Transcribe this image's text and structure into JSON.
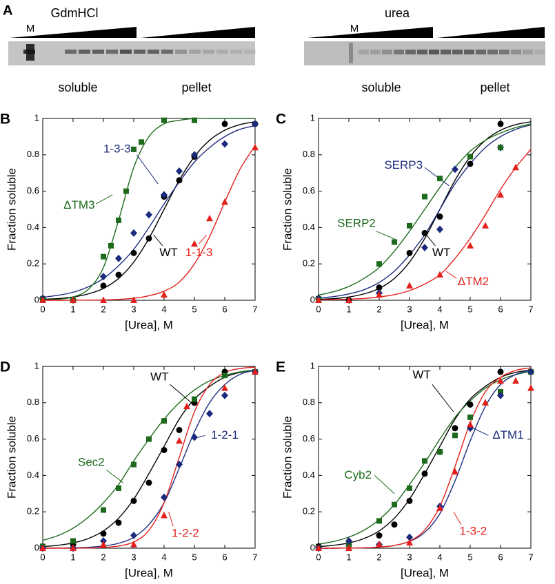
{
  "panel_a": {
    "label": "A",
    "gels": [
      {
        "title": "GdmHCl",
        "marker": "M",
        "left": "soluble",
        "right": "pellet"
      },
      {
        "title": "urea",
        "marker": "M",
        "left": "soluble",
        "right": "pellet"
      }
    ]
  },
  "chart_data": [
    {
      "type": "scatter",
      "panel": "B",
      "xlabel": "[Urea], M",
      "ylabel": "Fraction soluble",
      "xlim": [
        0,
        7
      ],
      "ylim": [
        0,
        1
      ],
      "xticks": [
        0,
        1,
        2,
        3,
        4,
        5,
        6,
        7
      ],
      "yticks": [
        0,
        0.2,
        0.4,
        0.6,
        0.8,
        1
      ],
      "fit_x": [
        0,
        0.5,
        1,
        1.5,
        2,
        2.5,
        3,
        3.5,
        4,
        4.5,
        5,
        5.5,
        6,
        6.5,
        7
      ],
      "series": [
        {
          "name": "WT",
          "color": "#000000",
          "marker": "circle",
          "x": [
            0,
            1,
            2,
            2.5,
            3,
            3.5,
            4,
            4.5,
            5,
            6,
            7
          ],
          "values": [
            0.01,
            0,
            0.08,
            0.14,
            0.26,
            0.34,
            0.57,
            0.66,
            0.79,
            0.97,
            0.97
          ],
          "fit": [
            0.005,
            0.009,
            0.018,
            0.035,
            0.065,
            0.12,
            0.21,
            0.34,
            0.5,
            0.66,
            0.79,
            0.88,
            0.935,
            0.966,
            0.982
          ]
        },
        {
          "name": "1-3-3",
          "color": "#1c2a7e",
          "marker": "diamond",
          "x": [
            0,
            2,
            2.5,
            3,
            3.5,
            4,
            4.5,
            5,
            6,
            7
          ],
          "values": [
            0.01,
            0.13,
            0.23,
            0.37,
            0.47,
            0.58,
            0.71,
            0.8,
            0.86,
            0.97
          ],
          "fit": [
            0.016,
            0.027,
            0.044,
            0.074,
            0.12,
            0.19,
            0.28,
            0.4,
            0.53,
            0.65,
            0.76,
            0.84,
            0.9,
            0.94,
            0.96
          ]
        },
        {
          "name": "ΔTM3",
          "color": "#1d6a1d",
          "marker": "square",
          "x": [
            0,
            1,
            2,
            2.25,
            2.5,
            2.75,
            3,
            3.25,
            4,
            5
          ],
          "values": [
            0,
            0,
            0.24,
            0.3,
            0.44,
            0.6,
            0.83,
            0.87,
            0.99,
            0.99
          ],
          "fit": [
            0.001,
            0.005,
            0.018,
            0.06,
            0.18,
            0.44,
            0.73,
            0.9,
            0.97,
            0.99,
            1,
            1,
            1,
            1,
            1
          ]
        },
        {
          "name": "1-1-3",
          "color": "#e3201b",
          "marker": "triangle",
          "x": [
            0,
            1,
            2,
            3,
            4,
            5,
            5.5,
            6,
            7
          ],
          "values": [
            0,
            0,
            0,
            0,
            0.03,
            0.31,
            0.45,
            0.54,
            0.84
          ],
          "fit": [
            0,
            0,
            0,
            0.001,
            0.002,
            0.005,
            0.011,
            0.025,
            0.05,
            0.1,
            0.2,
            0.35,
            0.54,
            0.72,
            0.85
          ]
        }
      ]
    },
    {
      "type": "scatter",
      "panel": "C",
      "xlabel": "[Urea], M",
      "ylabel": "Fraction soluble",
      "xlim": [
        0,
        7
      ],
      "ylim": [
        0,
        1
      ],
      "xticks": [
        0,
        1,
        2,
        3,
        4,
        5,
        6,
        7
      ],
      "yticks": [
        0,
        0.2,
        0.4,
        0.6,
        0.8,
        1
      ],
      "fit_x": [
        0,
        0.5,
        1,
        1.5,
        2,
        2.5,
        3,
        3.5,
        4,
        4.5,
        5,
        5.5,
        6,
        6.5,
        7
      ],
      "series": [
        {
          "name": "WT",
          "color": "#000000",
          "marker": "circle",
          "x": [
            0,
            1,
            2,
            3,
            3.5,
            4,
            5,
            6
          ],
          "values": [
            0.01,
            0,
            0.07,
            0.26,
            0.37,
            0.46,
            0.75,
            0.97
          ],
          "fit": [
            0.005,
            0.009,
            0.018,
            0.035,
            0.065,
            0.12,
            0.21,
            0.34,
            0.5,
            0.66,
            0.79,
            0.88,
            0.935,
            0.966,
            0.982
          ]
        },
        {
          "name": "SERP3",
          "color": "#1c2a7e",
          "marker": "diamond",
          "x": [
            0,
            2,
            3.5,
            4,
            4.5,
            6
          ],
          "values": [
            0.01,
            0.04,
            0.29,
            0.39,
            0.72,
            0.84
          ],
          "fit": [
            0.012,
            0.02,
            0.035,
            0.058,
            0.098,
            0.16,
            0.25,
            0.36,
            0.5,
            0.64,
            0.75,
            0.84,
            0.9,
            0.94,
            0.965
          ]
        },
        {
          "name": "SERP2",
          "color": "#1d6a1d",
          "marker": "square",
          "x": [
            0,
            2,
            2.5,
            3,
            3.5,
            4,
            5,
            6
          ],
          "values": [
            0,
            0.2,
            0.32,
            0.41,
            0.57,
            0.67,
            0.79,
            0.84
          ],
          "fit": [
            0.029,
            0.047,
            0.076,
            0.12,
            0.18,
            0.27,
            0.38,
            0.5,
            0.62,
            0.73,
            0.82,
            0.88,
            0.92,
            0.95,
            0.97
          ]
        },
        {
          "name": "ΔTM2",
          "color": "#e3201b",
          "marker": "triangle",
          "x": [
            0,
            1,
            2,
            3,
            4,
            5,
            5.5,
            6,
            6.5
          ],
          "values": [
            0,
            0,
            0.03,
            0.08,
            0.14,
            0.3,
            0.41,
            0.58,
            0.73
          ],
          "fit": [
            0.002,
            0.003,
            0.006,
            0.01,
            0.018,
            0.031,
            0.053,
            0.089,
            0.14,
            0.23,
            0.34,
            0.47,
            0.61,
            0.73,
            0.83
          ]
        }
      ]
    },
    {
      "type": "scatter",
      "panel": "D",
      "xlabel": "[Urea], M",
      "ylabel": "Fraction soluble",
      "xlim": [
        0,
        7
      ],
      "ylim": [
        0,
        1
      ],
      "xticks": [
        0,
        1,
        2,
        3,
        4,
        5,
        6,
        7
      ],
      "yticks": [
        0,
        0.2,
        0.4,
        0.6,
        0.8,
        1
      ],
      "fit_x": [
        0,
        0.5,
        1,
        1.5,
        2,
        2.5,
        3,
        3.5,
        4,
        4.5,
        5,
        5.5,
        6,
        6.5,
        7
      ],
      "series": [
        {
          "name": "WT",
          "color": "#000000",
          "marker": "circle",
          "x": [
            0,
            1,
            2,
            2.5,
            3,
            3.5,
            4,
            4.5,
            5,
            6,
            7
          ],
          "values": [
            0.01,
            0.02,
            0.08,
            0.14,
            0.26,
            0.36,
            0.54,
            0.65,
            0.8,
            0.97,
            0.97
          ],
          "fit": [
            0.009,
            0.016,
            0.029,
            0.053,
            0.095,
            0.165,
            0.27,
            0.41,
            0.56,
            0.71,
            0.82,
            0.89,
            0.94,
            0.967,
            0.98
          ]
        },
        {
          "name": "Sec2",
          "color": "#1d6a1d",
          "marker": "square",
          "x": [
            0,
            1,
            2,
            2.5,
            3,
            3.5,
            4,
            5,
            6,
            7
          ],
          "values": [
            0.01,
            0.04,
            0.21,
            0.33,
            0.46,
            0.6,
            0.7,
            0.82,
            0.95,
            0.97
          ],
          "fit": [
            0.043,
            0.069,
            0.11,
            0.17,
            0.25,
            0.35,
            0.48,
            0.6,
            0.71,
            0.8,
            0.87,
            0.92,
            0.95,
            0.97,
            0.98
          ]
        },
        {
          "name": "1-2-1",
          "color": "#1c2a7e",
          "marker": "diamond",
          "x": [
            0,
            1,
            2,
            3,
            4,
            4.5,
            5,
            5.5,
            6,
            7
          ],
          "values": [
            0,
            0,
            0.04,
            0.07,
            0.28,
            0.46,
            0.61,
            0.74,
            0.84,
            0.97
          ],
          "fit": [
            0,
            0.001,
            0.002,
            0.005,
            0.012,
            0.027,
            0.06,
            0.13,
            0.25,
            0.44,
            0.64,
            0.8,
            0.9,
            0.956,
            0.98
          ]
        },
        {
          "name": "1-2-2",
          "color": "#e3201b",
          "marker": "triangle",
          "x": [
            0,
            1,
            2,
            3,
            4,
            4.5,
            4.75,
            6,
            7
          ],
          "values": [
            0,
            0,
            0.02,
            0.02,
            0.18,
            0.59,
            0.78,
            0.88,
            0.97
          ],
          "fit": [
            0,
            0,
            0,
            0.001,
            0.004,
            0.012,
            0.034,
            0.098,
            0.25,
            0.5,
            0.75,
            0.9,
            0.966,
            0.988,
            0.996
          ]
        }
      ]
    },
    {
      "type": "scatter",
      "panel": "E",
      "xlabel": "[Urea], M",
      "ylabel": "Fraction soluble",
      "xlim": [
        0,
        7
      ],
      "ylim": [
        0,
        1
      ],
      "xticks": [
        0,
        1,
        2,
        3,
        4,
        5,
        6,
        7
      ],
      "yticks": [
        0,
        0.2,
        0.4,
        0.6,
        0.8,
        1
      ],
      "fit_x": [
        0,
        0.5,
        1,
        1.5,
        2,
        2.5,
        3,
        3.5,
        4,
        4.5,
        5,
        5.5,
        6,
        6.5,
        7
      ],
      "series": [
        {
          "name": "WT",
          "color": "#000000",
          "marker": "circle",
          "x": [
            0,
            1,
            2,
            2.5,
            3,
            3.5,
            4,
            4.5,
            5,
            6,
            7
          ],
          "values": [
            0.01,
            0.02,
            0.07,
            0.13,
            0.26,
            0.41,
            0.53,
            0.66,
            0.79,
            0.97,
            0.97
          ],
          "fit": [
            0.009,
            0.016,
            0.029,
            0.053,
            0.095,
            0.165,
            0.27,
            0.41,
            0.56,
            0.71,
            0.82,
            0.89,
            0.94,
            0.967,
            0.98
          ]
        },
        {
          "name": "Cyb2",
          "color": "#1d6a1d",
          "marker": "square",
          "x": [
            0,
            1,
            2,
            2.5,
            3,
            3.5,
            4,
            4.5,
            5,
            6,
            7
          ],
          "values": [
            0,
            0.02,
            0.15,
            0.24,
            0.33,
            0.48,
            0.53,
            0.62,
            0.72,
            0.86,
            0.97
          ],
          "fit": [
            0.022,
            0.037,
            0.061,
            0.099,
            0.157,
            0.24,
            0.35,
            0.47,
            0.6,
            0.72,
            0.81,
            0.88,
            0.926,
            0.955,
            0.973
          ]
        },
        {
          "name": "ΔTM1",
          "color": "#1c2a7e",
          "marker": "diamond",
          "x": [
            0,
            1,
            2,
            3,
            4,
            5,
            6,
            7
          ],
          "values": [
            0,
            0.04,
            0.02,
            0.06,
            0.23,
            0.66,
            0.84,
            0.97
          ],
          "fit": [
            0,
            0,
            0.001,
            0.002,
            0.006,
            0.015,
            0.037,
            0.087,
            0.19,
            0.37,
            0.59,
            0.78,
            0.9,
            0.955,
            0.98
          ]
        },
        {
          "name": "1-3-2",
          "color": "#e3201b",
          "marker": "triangle",
          "x": [
            0,
            1,
            2,
            3,
            4,
            4.5,
            5,
            5.5,
            6,
            6.5,
            7
          ],
          "values": [
            0,
            0,
            0.02,
            0.03,
            0.22,
            0.42,
            0.68,
            0.8,
            0.92,
            0.92,
            0.88
          ],
          "fit": [
            0,
            0,
            0.001,
            0.002,
            0.006,
            0.015,
            0.039,
            0.1,
            0.23,
            0.45,
            0.69,
            0.86,
            0.94,
            0.978,
            0.992
          ]
        }
      ]
    }
  ]
}
